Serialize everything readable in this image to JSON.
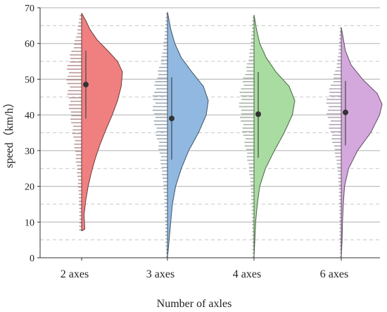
{
  "chart_data": {
    "type": "violin",
    "title": "",
    "xlabel": "Number of axles",
    "ylabel": "speed（km/h）",
    "ylim": [
      0,
      70
    ],
    "yticks": [
      0,
      10,
      20,
      30,
      40,
      50,
      60,
      70
    ],
    "grid": {
      "major": true,
      "minor_dashed": true
    },
    "categories": [
      "2 axes",
      "3 axes",
      "4 axes",
      "6 axes"
    ],
    "series": [
      {
        "category": "2 axes",
        "color": "#f08080",
        "mean": 48.5,
        "whisker": [
          39,
          58
        ],
        "range": [
          7.5,
          68.5
        ],
        "density": [
          [
            7.5,
            0.08
          ],
          [
            12,
            0.06
          ],
          [
            16,
            0.1
          ],
          [
            20,
            0.16
          ],
          [
            24,
            0.24
          ],
          [
            28,
            0.34
          ],
          [
            32,
            0.46
          ],
          [
            36,
            0.6
          ],
          [
            40,
            0.75
          ],
          [
            44,
            0.88
          ],
          [
            48,
            0.97
          ],
          [
            52,
            1.0
          ],
          [
            55,
            0.88
          ],
          [
            58,
            0.64
          ],
          [
            61,
            0.38
          ],
          [
            64,
            0.2
          ],
          [
            66,
            0.12
          ],
          [
            68.5,
            0.0
          ]
        ]
      },
      {
        "category": "3 axes",
        "color": "#90b8e0",
        "mean": 39,
        "whisker": [
          27.5,
          50.5
        ],
        "range": [
          0,
          68.8
        ],
        "density": [
          [
            0,
            0.0
          ],
          [
            5,
            0.04
          ],
          [
            10,
            0.08
          ],
          [
            15,
            0.12
          ],
          [
            20,
            0.2
          ],
          [
            25,
            0.34
          ],
          [
            30,
            0.52
          ],
          [
            35,
            0.76
          ],
          [
            40,
            0.95
          ],
          [
            44,
            1.0
          ],
          [
            48,
            0.88
          ],
          [
            52,
            0.6
          ],
          [
            56,
            0.34
          ],
          [
            60,
            0.18
          ],
          [
            64,
            0.08
          ],
          [
            68.8,
            0.0
          ]
        ]
      },
      {
        "category": "4 axes",
        "color": "#a8dca0",
        "mean": 40.2,
        "whisker": [
          28,
          52
        ],
        "range": [
          0,
          68
        ],
        "density": [
          [
            0,
            0.0
          ],
          [
            5,
            0.02
          ],
          [
            10,
            0.04
          ],
          [
            15,
            0.08
          ],
          [
            20,
            0.14
          ],
          [
            25,
            0.28
          ],
          [
            30,
            0.5
          ],
          [
            35,
            0.74
          ],
          [
            40,
            0.94
          ],
          [
            44,
            1.0
          ],
          [
            48,
            0.86
          ],
          [
            52,
            0.54
          ],
          [
            56,
            0.3
          ],
          [
            60,
            0.14
          ],
          [
            64,
            0.06
          ],
          [
            68,
            0.0
          ]
        ]
      },
      {
        "category": "6 axes",
        "color": "#d4a8dc",
        "mean": 40.7,
        "whisker": [
          31.5,
          49.5
        ],
        "range": [
          0,
          64.5
        ],
        "density": [
          [
            0,
            0.0
          ],
          [
            5,
            0.02
          ],
          [
            10,
            0.03
          ],
          [
            15,
            0.05
          ],
          [
            20,
            0.08
          ],
          [
            25,
            0.18
          ],
          [
            30,
            0.4
          ],
          [
            35,
            0.72
          ],
          [
            40,
            0.94
          ],
          [
            43,
            1.0
          ],
          [
            46,
            0.88
          ],
          [
            50,
            0.52
          ],
          [
            54,
            0.24
          ],
          [
            58,
            0.1
          ],
          [
            62,
            0.04
          ],
          [
            64.5,
            0.0
          ]
        ]
      }
    ]
  }
}
